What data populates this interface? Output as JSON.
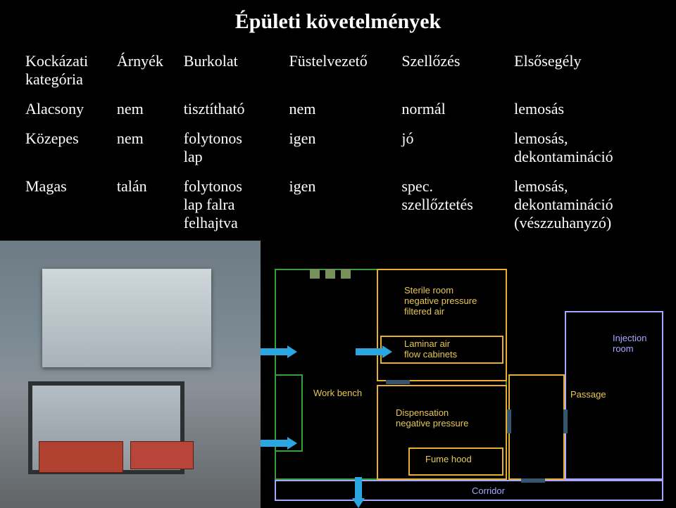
{
  "title": "Épületi követelmények",
  "columns": [
    "Kockázati\nkategória",
    "Árnyék",
    "Burkolat",
    "Füstelvezető",
    "Szellőzés",
    "Elsősegély"
  ],
  "rows": [
    {
      "c0": "Alacsony",
      "c1": "nem",
      "c2": "tisztítható",
      "c3": "nem",
      "c4": "normál",
      "c5": "lemosás"
    },
    {
      "c0": "Közepes",
      "c1": "nem",
      "c2": "folytonos\nlap",
      "c3": "igen",
      "c4": "jó",
      "c5": "lemosás,\ndekontamináció"
    },
    {
      "c0": "Magas",
      "c1": "talán",
      "c2": "folytonos\nlap falra\nfelhajtva",
      "c3": "igen",
      "c4": "spec.\nszellőztetés",
      "c5": "lemosás,\ndekontamináció\n(vészzuhanyzó)"
    }
  ],
  "diagram": {
    "colors": {
      "sterile_border": "#e8b030",
      "dispensation_border": "#e8b030",
      "work_border": "#38a038",
      "passage_border": "#e8b030",
      "injection_border": "#a7a7ff",
      "corridor_border": "#a7a7ff",
      "label_text": "#e8c850",
      "label_text2": "#a7a7ff",
      "arrow": "#2aa6e0",
      "vbar": "#76915c",
      "door": "#36556f"
    },
    "labels": {
      "sterile": "Sterile room\nnegative pressure\nfiltered air",
      "laminar": "Laminar air\nflow cabinets",
      "workbench": "Work bench",
      "dispensation": "Dispensation\nnegative pressure",
      "fumehood": "Fume hood",
      "passage": "Passage",
      "injection": "Injection\nroom",
      "corridor": "Corridor"
    }
  }
}
